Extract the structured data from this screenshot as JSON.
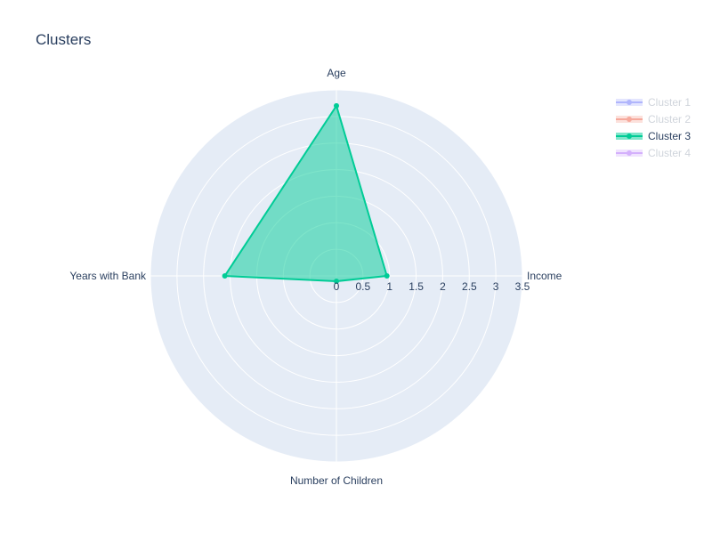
{
  "chart_data": {
    "type": "radar",
    "title": "Clusters",
    "axes": [
      "Age",
      "Income",
      "Number of Children",
      "Years with Bank"
    ],
    "radial_ticks": [
      "0",
      "0.5",
      "1",
      "1.5",
      "2",
      "2.5",
      "3",
      "3.5"
    ],
    "rlim": [
      0,
      3.5
    ],
    "grid": true,
    "legend_position": "top-right",
    "series": [
      {
        "name": "Cluster 1",
        "color": "#636efa",
        "visible": false,
        "values": []
      },
      {
        "name": "Cluster 2",
        "color": "#ef553b",
        "visible": false,
        "values": []
      },
      {
        "name": "Cluster 3",
        "color": "#00cc96",
        "visible": true,
        "values": [
          3.2,
          0.95,
          0.1,
          2.1
        ]
      },
      {
        "name": "Cluster 4",
        "color": "#ab63fa",
        "visible": false,
        "values": []
      }
    ]
  },
  "colors": {
    "polar_background": "#e5ecf6",
    "grid": "#ffffff",
    "text": "#2a3f5f",
    "legend_hidden_text": "#a1aab8"
  }
}
